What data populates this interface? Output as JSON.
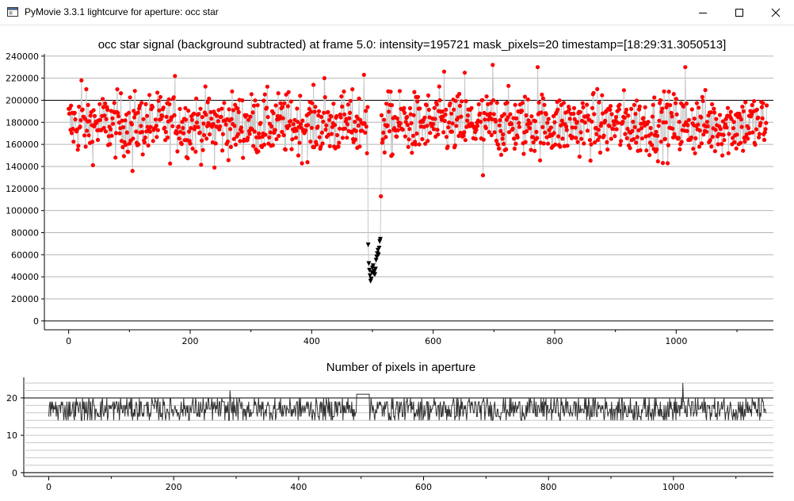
{
  "window": {
    "title": "PyMovie 3.3.1 lightcurve for aperture: occ star",
    "minimize_glyph": "—",
    "maximize_glyph": "☐",
    "close_glyph": "✕"
  },
  "colors": {
    "signal_points": "#ff0000",
    "dropped_points": "#000000",
    "connecting_line": "#c8c8c8",
    "pixel_trace": "#333333"
  },
  "chart_data": [
    {
      "type": "scatter",
      "title": "occ star signal (background subtracted) at frame 5.0: intensity=195721 mask_pixels=20 timestamp=[18:29:31.3050513]",
      "xlabel": "",
      "ylabel": "",
      "xlim": [
        -40,
        1160
      ],
      "ylim": [
        -8000,
        242000
      ],
      "x_ticks": [
        0,
        200,
        400,
        600,
        800,
        1000
      ],
      "x_tick_labels": [
        "0",
        "200",
        "400",
        "600",
        "800",
        "1000"
      ],
      "y_ticks": [
        0,
        20000,
        40000,
        60000,
        80000,
        100000,
        120000,
        140000,
        160000,
        180000,
        200000,
        220000,
        240000
      ],
      "y_tick_labels": [
        "0",
        "20000",
        "40000",
        "60000",
        "80000",
        "100000",
        "120000",
        "140000",
        "160000",
        "180000",
        "200000",
        "220000",
        "240000"
      ],
      "grid": true,
      "reference_lines": [
        0,
        200000
      ],
      "frames": [
        0,
        1149
      ],
      "baseline_mean": 178000,
      "baseline_spread": 14000,
      "event_frames": [
        493,
        513
      ],
      "event_values": [
        69000,
        52000,
        46000,
        41000,
        36000,
        38000,
        44000,
        48000,
        50000,
        43000,
        45000,
        42000,
        47000,
        55000,
        58000,
        61000,
        64000,
        60000,
        66000,
        72000,
        74000
      ],
      "ingress": {
        "frame": 491,
        "value": 152000
      },
      "egress": {
        "frame": 514,
        "value": 113000
      },
      "notable_points": [
        {
          "x": 21,
          "y": 218000
        },
        {
          "x": 175,
          "y": 222000
        },
        {
          "x": 421,
          "y": 220000
        },
        {
          "x": 486,
          "y": 223000
        },
        {
          "x": 618,
          "y": 226000
        },
        {
          "x": 652,
          "y": 225000
        },
        {
          "x": 698,
          "y": 232000
        },
        {
          "x": 772,
          "y": 230000
        },
        {
          "x": 1015,
          "y": 230000
        },
        {
          "x": 682,
          "y": 132000
        },
        {
          "x": 105,
          "y": 136000
        },
        {
          "x": 240,
          "y": 139000
        }
      ],
      "series": [
        {
          "name": "",
          "marker": "circle",
          "color": "#ff0000"
        },
        {
          "name": "",
          "marker": "triangle-down",
          "color": "#000000"
        }
      ]
    },
    {
      "type": "line",
      "title": "Number of pixels in aperture",
      "xlabel": "",
      "ylabel": "",
      "xlim": [
        -40,
        1160
      ],
      "ylim": [
        -1,
        25.5
      ],
      "x_ticks": [
        0,
        200,
        400,
        600,
        800,
        1000
      ],
      "x_tick_labels": [
        "0",
        "200",
        "400",
        "600",
        "800",
        "1000"
      ],
      "y_ticks": [
        0,
        10,
        20
      ],
      "y_tick_labels": [
        "0",
        "10",
        "20"
      ],
      "grid": true,
      "reference_lines": [
        0,
        20
      ],
      "baseline_mean": 17,
      "baseline_range": [
        14,
        20
      ],
      "plateau": {
        "from": 493,
        "to": 513,
        "value": 21
      },
      "notable_points": [
        {
          "x": 1015,
          "y": 24
        },
        {
          "x": 290,
          "y": 22
        }
      ]
    }
  ]
}
